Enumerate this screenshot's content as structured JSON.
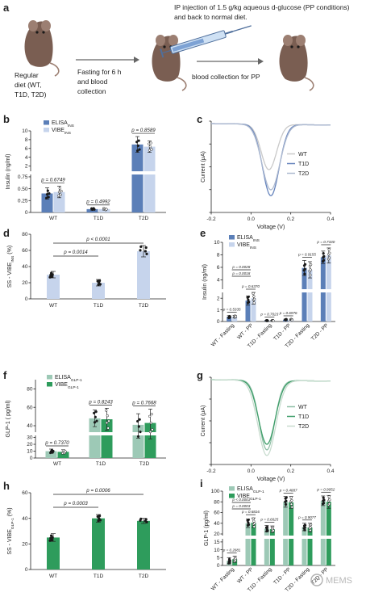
{
  "schematic": {
    "panel_label": "a",
    "diet_lines": [
      "Regular",
      "diet (WT,",
      "T1D, T2D)"
    ],
    "fasting_lines": [
      "Fasting for 6 h",
      "and blood",
      "collection"
    ],
    "ip_lines": [
      "IP injection of 1.5 g/kg aqueous d-glucose (PP conditions)",
      "and back to normal diet."
    ],
    "pp_line": "blood collection for PP"
  },
  "watermark": "MEMS",
  "chart_data": [
    {
      "id": "b",
      "type": "bar",
      "panel_label": "b",
      "ylabel": "Insulin (ng/ml)",
      "categories": [
        "WT",
        "T1D",
        "T2D"
      ],
      "yticks_lower": [
        "0",
        "0.25",
        "0.50",
        "0.75"
      ],
      "yticks_upper": [
        "2",
        "4",
        "6",
        "8",
        "10"
      ],
      "series": [
        {
          "name": "ELISA",
          "name_sub": "INS",
          "color": "#5b7fb8",
          "values": [
            0.4,
            0.07,
            6.9
          ],
          "errors": [
            0.12,
            0.02,
            1.8
          ]
        },
        {
          "name": "VIBE",
          "name_sub": "INS",
          "color": "#c6d4ec",
          "values": [
            0.43,
            0.07,
            6.4
          ],
          "errors": [
            0.12,
            0.02,
            1.3
          ]
        }
      ],
      "pvalues": [
        "p = 0.6749",
        "p = 0.4992",
        "p = 0.8589"
      ]
    },
    {
      "id": "c",
      "type": "line",
      "panel_label": "c",
      "xlabel": "Voltage (V)",
      "ylabel": "Current (μA)",
      "xticks": [
        "-0.2",
        "0.0",
        "0.2",
        "0.4"
      ],
      "xlim": [
        -0.2,
        0.4
      ],
      "series": [
        {
          "name": "WT",
          "color": "#c9c9c9",
          "peak_x": 0.09,
          "peak_depth": 0.54
        },
        {
          "name": "T1D",
          "color": "#6684bd",
          "peak_x": 0.1,
          "peak_depth": 0.85
        },
        {
          "name": "T2D",
          "color": "#aebad0",
          "peak_x": 0.1,
          "peak_depth": 0.78
        }
      ]
    },
    {
      "id": "d",
      "type": "bar",
      "panel_label": "d",
      "ylabel": "SS - VIBE",
      "ylabel_sub": "INS",
      "ylabel_unit": " (%)",
      "categories": [
        "WT",
        "T1D",
        "T2D"
      ],
      "yticks": [
        "0",
        "20",
        "40",
        "60",
        "80"
      ],
      "ylim": [
        0,
        80
      ],
      "values": [
        30,
        20,
        59
      ],
      "errors": [
        4,
        4,
        7
      ],
      "color": "#c6d4ec",
      "brackets": [
        {
          "from": 0,
          "to": 1,
          "label": "p = 0.0014"
        },
        {
          "from": 0,
          "to": 2,
          "label": "p < 0.0001"
        }
      ]
    },
    {
      "id": "e",
      "type": "bar",
      "panel_label": "e",
      "ylabel": "Insulin (ng/ml)",
      "categories": [
        "WT - Fasting",
        "WT - PP",
        "T1D - Fasting",
        "T1D - PP",
        "T2D - Fasting",
        "T2D - PP"
      ],
      "yticks_lower": [
        "0",
        "1",
        "2"
      ],
      "yticks_upper": [
        "4",
        "6",
        "8",
        "10"
      ],
      "series": [
        {
          "name": "ELISA",
          "name_sub": "INS",
          "color": "#5b7fb8",
          "values": [
            0.4,
            1.8,
            0.08,
            0.15,
            5.9,
            7.6
          ],
          "errors": [
            0.1,
            0.4,
            0.03,
            0.05,
            1.2,
            1.0
          ]
        },
        {
          "name": "VIBE",
          "name_sub": "INS",
          "color": "#c6d4ec",
          "values": [
            0.42,
            2.0,
            0.08,
            0.16,
            5.6,
            7.9
          ],
          "errors": [
            0.1,
            0.5,
            0.03,
            0.05,
            1.3,
            1.2
          ]
        }
      ],
      "pvalues": [
        "p = 0.5335",
        "p = 0.6370",
        "p = 0.7023",
        "p = 0.6976",
        "p = 0.9155",
        "p = 0.7330"
      ],
      "brackets": [
        {
          "label": "p = 0.0018"
        },
        {
          "label": "p = 0.0028"
        }
      ]
    },
    {
      "id": "f",
      "type": "bar",
      "panel_label": "f",
      "ylabel": "GLP-1 ( pg/ml)",
      "categories": [
        "WT",
        "T1D",
        "T2D"
      ],
      "yticks_lower": [
        "0",
        "10",
        "20",
        "30"
      ],
      "yticks_upper": [
        "40",
        "60",
        "80"
      ],
      "series": [
        {
          "name": "ELISA",
          "name_sub": "GLP-1",
          "color": "#9dc9b6",
          "values": [
            10,
            48,
            41
          ],
          "errors": [
            3,
            9,
            12
          ]
        },
        {
          "name": "VIBE",
          "name_sub": "GLP-1",
          "color": "#2e9c5c",
          "values": [
            9,
            47,
            43
          ],
          "errors": [
            3,
            12,
            15
          ]
        }
      ],
      "pvalues": [
        "p = 0.7370",
        "p = 0.8243",
        "p = 0.7668"
      ]
    },
    {
      "id": "g",
      "type": "line",
      "panel_label": "g",
      "xlabel": "Voltage (V)",
      "ylabel": "Current (μA)",
      "xticks": [
        "-0.2",
        "0.0",
        "0.2",
        "0.4"
      ],
      "xlim": [
        -0.2,
        0.4
      ],
      "series": [
        {
          "name": "WT",
          "color": "#8fbfa6",
          "peak_x": 0.08,
          "peak_depth": 0.87
        },
        {
          "name": "T1D",
          "color": "#3f9e6a",
          "peak_x": 0.08,
          "peak_depth": 0.8
        },
        {
          "name": "T2D",
          "color": "#c8dccf",
          "peak_x": 0.08,
          "peak_depth": 0.94
        }
      ]
    },
    {
      "id": "h",
      "type": "bar",
      "panel_label": "h",
      "ylabel": "SS - VIBE",
      "ylabel_sub": "GLP-1",
      "ylabel_unit": " (%)",
      "categories": [
        "WT",
        "T1D",
        "T2D"
      ],
      "yticks": [
        "0",
        "20",
        "40",
        "60"
      ],
      "ylim": [
        0,
        60
      ],
      "values": [
        25,
        40,
        38
      ],
      "errors": [
        3,
        3,
        2
      ],
      "color": "#2e9c5c",
      "brackets": [
        {
          "from": 0,
          "to": 1,
          "label": "p = 0.0003"
        },
        {
          "from": 0,
          "to": 2,
          "label": "p = 0.0006"
        }
      ]
    },
    {
      "id": "i",
      "type": "bar",
      "panel_label": "i",
      "ylabel": "GLP-1 (pg/ml)",
      "categories": [
        "WT - Fasting",
        "WT - PP",
        "T1D - Fasting",
        "T1D - PP",
        "T2D - Fasting",
        "T2D - PP"
      ],
      "yticks_lower": [
        "0",
        "5",
        "10",
        "15"
      ],
      "yticks_upper": [
        "20",
        "40",
        "60",
        "80",
        "100"
      ],
      "series": [
        {
          "name": "ELISA",
          "name_sub": "GLP-1",
          "color": "#9dc9b6",
          "values": [
            3,
            40,
            30,
            80,
            33,
            82
          ],
          "errors": [
            2,
            8,
            6,
            10,
            7,
            9
          ]
        },
        {
          "name": "VIBE",
          "name_sub": "GLP-1",
          "color": "#2e9c5c",
          "values": [
            4,
            41,
            29,
            79,
            32,
            80
          ],
          "errors": [
            2,
            9,
            6,
            11,
            8,
            12
          ]
        }
      ],
      "pvalues": [
        "p = 0.2881",
        "p = 0.6816",
        "p = 0.6625",
        "p = 0.4887",
        "p = 0.9077",
        "p = 0.9052"
      ],
      "brackets": [
        {
          "label": "p = 0.0003"
        },
        {
          "label": "p < 0.0001"
        }
      ]
    }
  ]
}
